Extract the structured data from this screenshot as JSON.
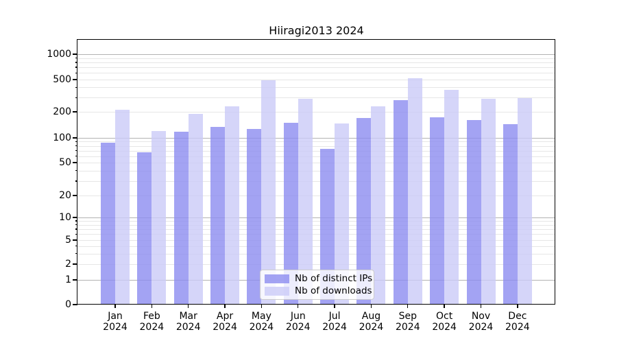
{
  "title": "Hiiragi2013 2024",
  "chart_data": {
    "type": "bar",
    "title": "Hiiragi2013 2024",
    "x_categories": [
      {
        "month": "Jan",
        "year": "2024"
      },
      {
        "month": "Feb",
        "year": "2024"
      },
      {
        "month": "Mar",
        "year": "2024"
      },
      {
        "month": "Apr",
        "year": "2024"
      },
      {
        "month": "May",
        "year": "2024"
      },
      {
        "month": "Jun",
        "year": "2024"
      },
      {
        "month": "Jul",
        "year": "2024"
      },
      {
        "month": "Aug",
        "year": "2024"
      },
      {
        "month": "Sep",
        "year": "2024"
      },
      {
        "month": "Oct",
        "year": "2024"
      },
      {
        "month": "Nov",
        "year": "2024"
      },
      {
        "month": "Dec",
        "year": "2024"
      }
    ],
    "series": [
      {
        "name": "Nb of distinct IPs",
        "color": "#8c8cf0",
        "values": [
          88,
          67,
          117,
          133,
          126,
          149,
          73,
          171,
          280,
          173,
          160,
          144
        ]
      },
      {
        "name": "Nb of downloads",
        "color": "#cbcbf8",
        "values": [
          214,
          120,
          190,
          235,
          495,
          290,
          147,
          235,
          515,
          370,
          290,
          296
        ]
      }
    ],
    "y_axis": {
      "scale": "symlog",
      "ticks": [
        {
          "label": "1000",
          "value": 1000
        },
        {
          "label": "500",
          "value": 500
        },
        {
          "label": "200",
          "value": 200
        },
        {
          "label": "100",
          "value": 100
        },
        {
          "label": "50",
          "value": 50
        },
        {
          "label": "20",
          "value": 20
        },
        {
          "label": "10",
          "value": 10
        },
        {
          "label": "5",
          "value": 5
        },
        {
          "label": "2",
          "value": 2
        },
        {
          "label": "1",
          "value": 1
        },
        {
          "label": "0",
          "value": 0
        }
      ],
      "ylim": [
        0,
        1450
      ]
    },
    "grid": true,
    "legend": {
      "position": "lower center",
      "items": [
        "Nb of distinct IPs",
        "Nb of downloads"
      ]
    }
  },
  "colors": {
    "background": "#ffffff",
    "axis": "#000000",
    "major_grid": "#b2b2b2",
    "minor_grid": "#e6e6e6",
    "bar_distinct_ips": "#8c8cf0",
    "bar_downloads": "#cbcbf8"
  }
}
